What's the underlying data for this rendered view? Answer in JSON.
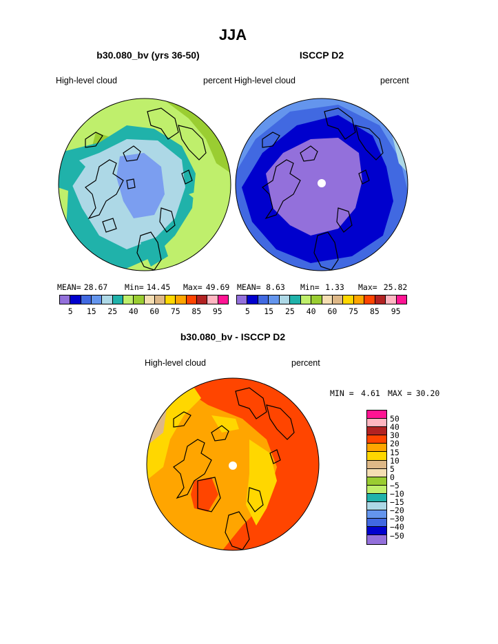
{
  "page_title": "JJA",
  "chart_data": [
    {
      "type": "heatmap",
      "projection": "polar-stereographic",
      "title": "b30.080_bv (yrs 36-50)",
      "left_label": "High-level cloud",
      "right_label": "percent",
      "stats": {
        "mean_label": "MEAN=",
        "mean": "28.67",
        "min_label": "Min=",
        "min": "14.45",
        "max_label": "Max=",
        "max": "49.69"
      },
      "colorbar": {
        "colors": [
          "#9370db",
          "#0000cd",
          "#4169e1",
          "#6495ed",
          "#add8e6",
          "#20b2aa",
          "#bfef6c",
          "#9acd32",
          "#f5deb3",
          "#deb887",
          "#ffd700",
          "#ffa500",
          "#ff4500",
          "#b22222",
          "#ffb6c1",
          "#ff1493"
        ],
        "tick_labels": [
          "5",
          "15",
          "25",
          "40",
          "60",
          "75",
          "85",
          "95"
        ]
      }
    },
    {
      "type": "heatmap",
      "projection": "polar-stereographic",
      "title": "ISCCP D2",
      "left_label": "High-level cloud",
      "right_label": "percent",
      "stats": {
        "mean_label": "MEAN=",
        "mean": "8.63",
        "min_label": "Min=",
        "min": "1.33",
        "max_label": "Max=",
        "max": "25.82"
      },
      "colorbar": {
        "colors": [
          "#9370db",
          "#0000cd",
          "#4169e1",
          "#6495ed",
          "#add8e6",
          "#20b2aa",
          "#bfef6c",
          "#9acd32",
          "#f5deb3",
          "#deb887",
          "#ffd700",
          "#ffa500",
          "#ff4500",
          "#b22222",
          "#ffb6c1",
          "#ff1493"
        ],
        "tick_labels": [
          "5",
          "15",
          "25",
          "40",
          "60",
          "75",
          "85",
          "95"
        ]
      }
    },
    {
      "type": "heatmap",
      "projection": "polar-stereographic",
      "title": "b30.080_bv - ISCCP D2",
      "left_label": "High-level cloud",
      "right_label": "percent",
      "stats": {
        "min_label": "MIN =",
        "min": "4.61",
        "max_label": "MAX =",
        "max": "30.20"
      },
      "colorbar": {
        "colors": [
          "#ff1493",
          "#ffb6c1",
          "#b22222",
          "#ff4500",
          "#ffa500",
          "#ffd700",
          "#deb887",
          "#f5deb3",
          "#9acd32",
          "#bfef6c",
          "#20b2aa",
          "#add8e6",
          "#6495ed",
          "#4169e1",
          "#0000cd",
          "#9370db"
        ],
        "tick_labels": [
          "50",
          "40",
          "30",
          "20",
          "15",
          "10",
          "5",
          "0",
          "−5",
          "−10",
          "−15",
          "−20",
          "−30",
          "−40",
          "−50"
        ]
      }
    }
  ],
  "colors": {
    "lightblue": "#add8e6",
    "teal": "#20b2aa",
    "lime": "#bfef6c",
    "olive": "#9acd32",
    "slate": "#7b9ef0",
    "purple": "#9370db",
    "blue": "#0000cd",
    "royal": "#4169e1",
    "cornflower": "#6495ed",
    "gold": "#ffd700",
    "orange": "#ffa500",
    "orangered": "#ff4500",
    "tan": "#deb887"
  }
}
